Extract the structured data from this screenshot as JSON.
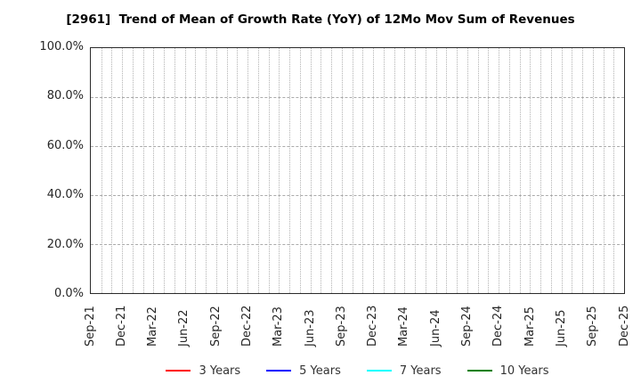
{
  "chart_data": {
    "type": "line",
    "title": "[2961]  Trend of Mean of Growth Rate (YoY) of 12Mo Mov Sum of Revenues",
    "xlabel": "",
    "ylabel": "",
    "ylim": [
      0,
      100
    ],
    "y_tick_labels": [
      "100.0%",
      "80.0%",
      "60.0%",
      "40.0%",
      "20.0%",
      "0.0%"
    ],
    "x_tick_labels": [
      "Sep-21",
      "Dec-21",
      "Mar-22",
      "Jun-22",
      "Sep-22",
      "Dec-22",
      "Mar-23",
      "Jun-23",
      "Sep-23",
      "Dec-23",
      "Mar-24",
      "Jun-24",
      "Sep-24",
      "Dec-24",
      "Mar-25",
      "Jun-25",
      "Sep-25",
      "Dec-25"
    ],
    "months_total": 52,
    "grid": true,
    "legend_position": "bottom",
    "series": [
      {
        "name": "3 Years",
        "color": "#ff0000",
        "values": []
      },
      {
        "name": "5 Years",
        "color": "#0000ff",
        "values": []
      },
      {
        "name": "7 Years",
        "color": "#00ffff",
        "values": []
      },
      {
        "name": "10 Years",
        "color": "#008000",
        "values": []
      }
    ]
  },
  "colors": {
    "background": "#ffffff",
    "plot_border": "#2b2b2b",
    "gridline": "#b3b3b3",
    "tick_label": "#262626",
    "legend_text": "#333333",
    "title": "#000000"
  }
}
